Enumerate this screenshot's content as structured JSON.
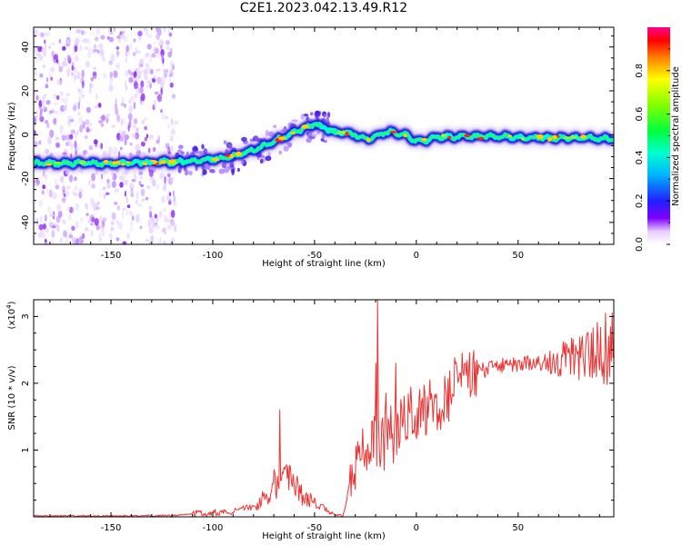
{
  "title": "C2E1.2023.042.13.49.R12",
  "chart_data": [
    {
      "type": "heatmap",
      "xlabel": "Height of straight line (km)",
      "ylabel": "Frequency (Hz)",
      "xlim": [
        -188,
        97
      ],
      "ylim": [
        -50,
        49
      ],
      "xticks": [
        -150,
        -100,
        -50,
        0,
        50
      ],
      "xtick_labels": [
        "-150",
        "-100",
        "-50",
        "0",
        "50"
      ],
      "yticks": [
        -40,
        -20,
        0,
        20,
        40
      ],
      "ytick_labels": [
        "-40",
        "-20",
        "0",
        "20",
        "40"
      ],
      "colorbar": {
        "label": "Normalized spectral amplitude",
        "range": [
          0,
          1
        ],
        "ticks": [
          0.0,
          0.2,
          0.4,
          0.6,
          0.8
        ],
        "tick_labels": [
          "0.0",
          "0.2",
          "0.4",
          "0.6",
          "0.8"
        ]
      },
      "ridge_center": [
        [
          -188,
          -13
        ],
        [
          -170,
          -13
        ],
        [
          -150,
          -13
        ],
        [
          -130,
          -12.5
        ],
        [
          -120,
          -12.5
        ],
        [
          -110,
          -12
        ],
        [
          -100,
          -11
        ],
        [
          -90,
          -10
        ],
        [
          -80,
          -7
        ],
        [
          -70,
          -3
        ],
        [
          -60,
          1
        ],
        [
          -55,
          3
        ],
        [
          -50,
          5
        ],
        [
          -45,
          3
        ],
        [
          -40,
          1
        ],
        [
          -35,
          1
        ],
        [
          -30,
          0
        ],
        [
          -25,
          -2
        ],
        [
          -20,
          -1
        ],
        [
          -15,
          1
        ],
        [
          -10,
          1
        ],
        [
          -5,
          0
        ],
        [
          0,
          -3
        ],
        [
          3,
          -3
        ],
        [
          10,
          -1
        ],
        [
          20,
          -1
        ],
        [
          40,
          -1
        ],
        [
          60,
          -1.5
        ],
        [
          80,
          -1.5
        ],
        [
          97,
          -2
        ]
      ]
    },
    {
      "type": "line",
      "xlabel": "Height of straight line (km)",
      "ylabel": "SNR (10 * v/v)",
      "yscale_label": "(x10",
      "yscale_exp": "4",
      "yscale_close": ")",
      "color": "#ee3333",
      "xlim": [
        -188,
        97
      ],
      "ylim": [
        0,
        3.25
      ],
      "xticks": [
        -150,
        -100,
        -50,
        0,
        50
      ],
      "xtick_labels": [
        "-150",
        "-100",
        "-50",
        "0",
        "50"
      ],
      "yticks": [
        1,
        2,
        3
      ],
      "ytick_labels": [
        "1",
        "2",
        "3"
      ],
      "trend": [
        [
          -188,
          0.01
        ],
        [
          -150,
          0.01
        ],
        [
          -120,
          0.02
        ],
        [
          -100,
          0.06
        ],
        [
          -90,
          0.08
        ],
        [
          -80,
          0.15
        ],
        [
          -75,
          0.25
        ],
        [
          -70,
          0.45
        ],
        [
          -66,
          0.55
        ],
        [
          -60,
          0.45
        ],
        [
          -55,
          0.3
        ],
        [
          -50,
          0.2
        ],
        [
          -45,
          0.1
        ],
        [
          -40,
          0.03
        ],
        [
          -36,
          0.02
        ],
        [
          -33,
          0.45
        ],
        [
          -30,
          0.75
        ],
        [
          -25,
          0.9
        ],
        [
          -20,
          1.05
        ],
        [
          -15,
          1.1
        ],
        [
          -10,
          1.25
        ],
        [
          -5,
          1.45
        ],
        [
          0,
          1.5
        ],
        [
          5,
          1.55
        ],
        [
          10,
          1.65
        ],
        [
          15,
          1.8
        ],
        [
          20,
          1.95
        ],
        [
          25,
          2.05
        ],
        [
          30,
          2.15
        ],
        [
          40,
          2.25
        ],
        [
          50,
          2.27
        ],
        [
          60,
          2.3
        ],
        [
          70,
          2.32
        ],
        [
          80,
          2.35
        ],
        [
          90,
          2.4
        ],
        [
          97,
          2.45
        ]
      ],
      "peaks": [
        [
          -67,
          1.6
        ],
        [
          -20,
          2.3
        ],
        [
          -19,
          3.25
        ],
        [
          -15,
          1.85
        ],
        [
          -10,
          2.3
        ],
        [
          93,
          3.05
        ]
      ]
    }
  ]
}
